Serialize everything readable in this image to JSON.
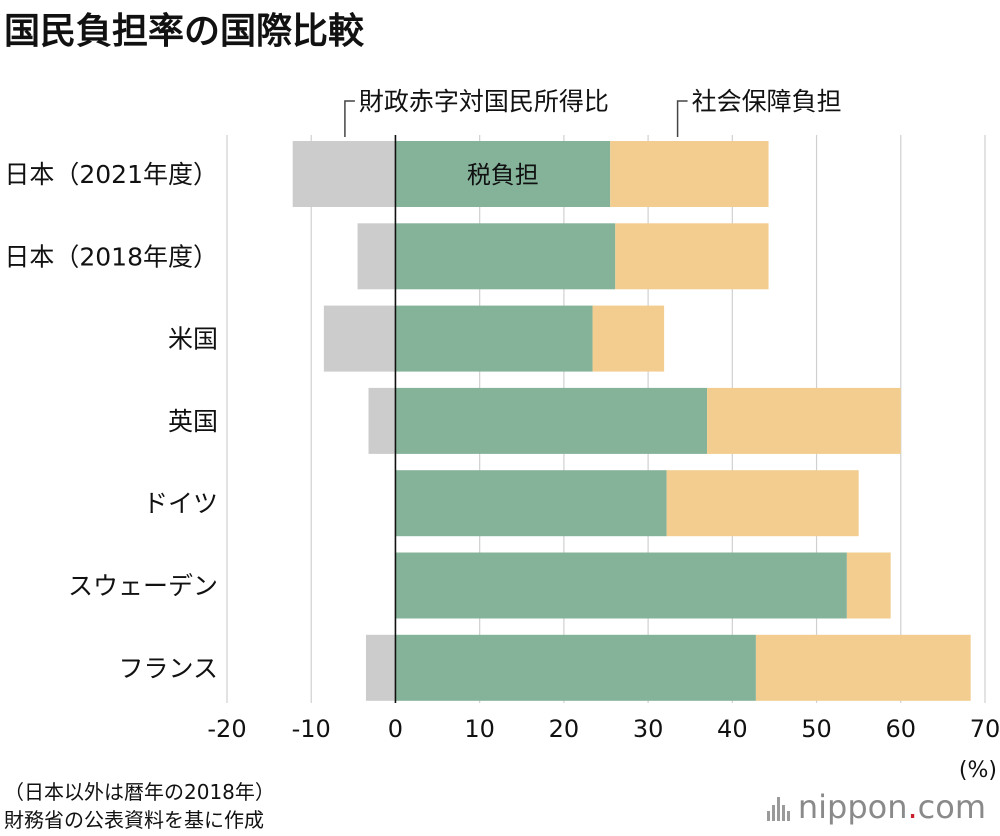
{
  "title": "国民負担率の国際比較",
  "chart_data": {
    "type": "bar",
    "orientation": "horizontal",
    "stacked": true,
    "title": "国民負担率の国際比較",
    "categories": [
      "日本（2021年度）",
      "日本（2018年度）",
      "米国",
      "英国",
      "ドイツ",
      "スウェーデン",
      "フランス"
    ],
    "series": [
      {
        "name": "財政赤字対国民所得比",
        "color": "#cccccc",
        "values": [
          -12.2,
          -4.5,
          -8.5,
          -3.2,
          0,
          0,
          -3.5
        ]
      },
      {
        "name": "税負担",
        "color": "#84b39a",
        "values": [
          25.5,
          26.1,
          23.4,
          37.0,
          32.2,
          53.6,
          42.8
        ]
      },
      {
        "name": "社会保障負担",
        "color": "#f2cd8f",
        "values": [
          18.8,
          18.2,
          8.5,
          23.0,
          22.8,
          5.2,
          25.5
        ]
      }
    ],
    "xlim": [
      -20,
      70
    ],
    "xticks": [
      -20,
      -10,
      0,
      10,
      20,
      30,
      40,
      50,
      60,
      70
    ],
    "xunit": "(%)",
    "annotations": {
      "deficit": "財政赤字対国民所得比",
      "social": "社会保障負担",
      "tax": "税負担"
    }
  },
  "notes": {
    "line1": "（日本以外は暦年の2018年）",
    "line2": "財務省の公表資料を基に作成"
  },
  "logo": {
    "text": "nippon",
    "dot": ".",
    "suffix": "com"
  }
}
